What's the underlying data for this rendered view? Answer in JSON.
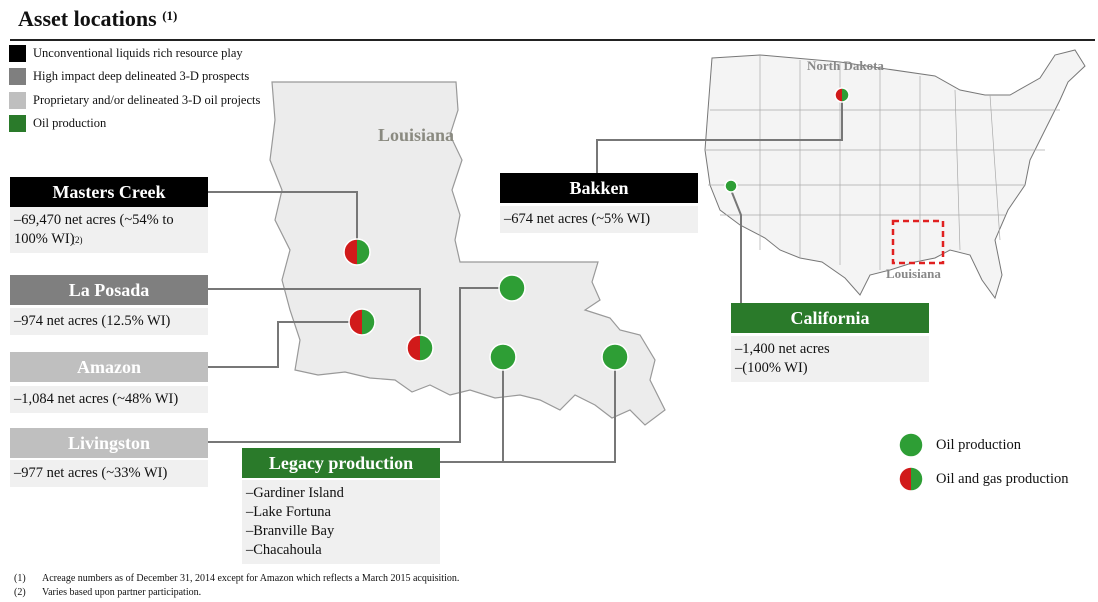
{
  "title": "Asset locations",
  "title_note": "(1)",
  "legend": [
    {
      "label": "Unconventional liquids rich resource play",
      "color": "#000000"
    },
    {
      "label": "High impact deep delineated 3-D prospects",
      "color": "#7f7f7f"
    },
    {
      "label": "Proprietary and/or delineated 3-D oil projects",
      "color": "#bfbfbf"
    },
    {
      "label": "Oil production",
      "color": "#2a7a2a"
    }
  ],
  "map_labels": {
    "louisiana_main": "Louisiana",
    "north_dakota": "North Dakota",
    "louisiana_inset": "Louisiana"
  },
  "assets": {
    "masters_creek": {
      "name": "Masters Creek",
      "lines": [
        "–69,470 net acres (~54% to 100% WI)"
      ],
      "note": "(2)"
    },
    "la_posada": {
      "name": "La Posada",
      "lines": [
        "–974 net acres (12.5% WI)"
      ]
    },
    "amazon": {
      "name": "Amazon",
      "lines": [
        "–1,084 net acres (~48% WI)"
      ]
    },
    "livingston": {
      "name": "Livingston",
      "lines": [
        "–977 net acres (~33% WI)"
      ]
    },
    "legacy": {
      "name": "Legacy production",
      "lines": [
        "–Gardiner Island",
        "–Lake Fortuna",
        "–Branville Bay",
        "–Chacahoula"
      ]
    },
    "bakken": {
      "name": "Bakken",
      "lines": [
        "–674 net acres (~5% WI)"
      ]
    },
    "california": {
      "name": "California",
      "lines": [
        "–1,400 net acres",
        "–(100% WI)"
      ]
    }
  },
  "map_legend": {
    "oil": "Oil production",
    "oil_gas": "Oil and gas production"
  },
  "colors": {
    "green": "#2a7a2a",
    "pin_green": "#2e9e35",
    "pin_red": "#d11a1a",
    "black": "#000000",
    "dark_gray": "#7f7f7f",
    "light_gray": "#bfbfbf"
  },
  "footnotes": [
    {
      "num": "(1)",
      "text": "Acreage numbers as of December 31, 2014 except for Amazon which reflects a March 2015 acquisition."
    },
    {
      "num": "(2)",
      "text": "Varies based upon partner participation."
    }
  ]
}
